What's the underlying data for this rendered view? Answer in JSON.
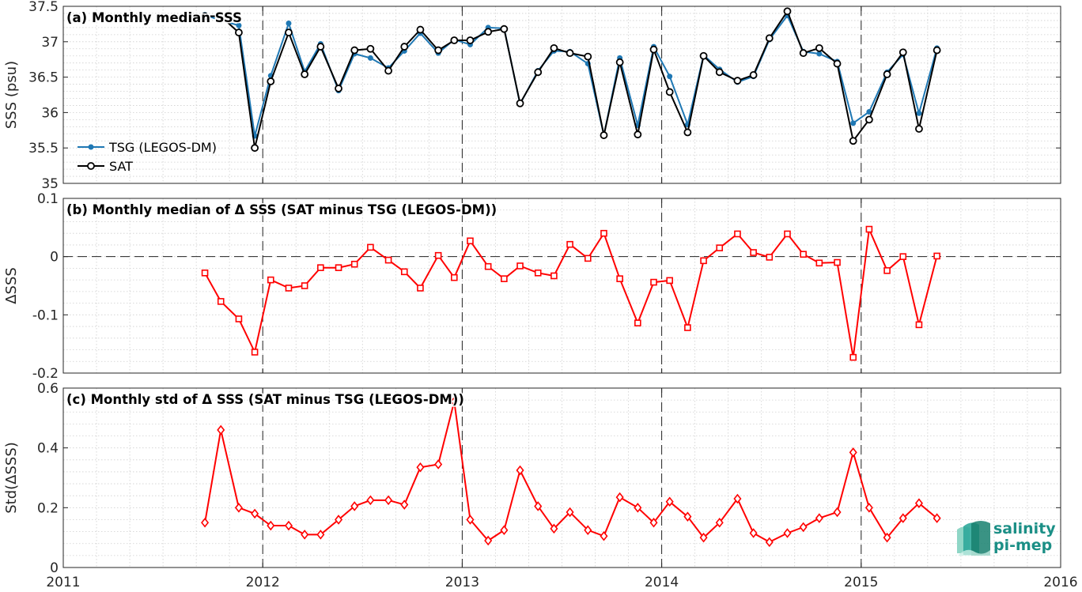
{
  "chart_data": [
    {
      "type": "line",
      "title": "(a) Monthly median SSS",
      "ylabel": "SSS (psu)",
      "ylim": [
        35,
        37.5
      ],
      "yticks": [
        "35",
        "35.5",
        "36",
        "36.5",
        "37",
        "37.5"
      ],
      "xlim": [
        2011,
        2016
      ],
      "x": [
        2011.71,
        2011.79,
        2011.88,
        2011.96,
        2012.04,
        2012.13,
        2012.21,
        2012.29,
        2012.38,
        2012.46,
        2012.54,
        2012.63,
        2012.71,
        2012.79,
        2012.88,
        2012.96,
        2013.04,
        2013.13,
        2013.21,
        2013.29,
        2013.38,
        2013.46,
        2013.54,
        2013.63,
        2013.71,
        2013.79,
        2013.88,
        2013.96,
        2014.04,
        2014.13,
        2014.21,
        2014.29,
        2014.38,
        2014.46,
        2014.54,
        2014.63,
        2014.71,
        2014.79,
        2014.88,
        2014.96,
        2015.04,
        2015.13,
        2015.21,
        2015.29,
        2015.38
      ],
      "series": [
        {
          "name": "TSG (LEGOS-DM)",
          "color": "#1f78b4",
          "marker": "dot",
          "values": [
            37.38,
            37.3,
            37.23,
            35.67,
            36.52,
            37.26,
            36.58,
            36.97,
            36.31,
            36.83,
            36.77,
            36.63,
            36.87,
            37.12,
            36.84,
            37.03,
            36.96,
            37.2,
            37.19,
            36.12,
            36.59,
            36.87,
            36.86,
            36.69,
            35.68,
            36.77,
            35.82,
            36.93,
            36.51,
            35.83,
            36.81,
            36.61,
            36.43,
            36.51,
            37.03,
            37.37,
            36.86,
            36.83,
            36.72,
            35.85,
            36.01,
            36.57,
            36.82,
            35.99,
            36.91
          ]
        },
        {
          "name": "SAT",
          "color": "#000000",
          "marker": "circle",
          "values": [
            37.36,
            37.36,
            37.13,
            35.5,
            36.44,
            37.13,
            36.54,
            36.93,
            36.34,
            36.88,
            36.9,
            36.59,
            36.93,
            37.17,
            36.88,
            37.02,
            37.02,
            37.14,
            37.18,
            36.13,
            36.57,
            36.91,
            36.84,
            36.79,
            35.68,
            36.71,
            35.69,
            36.89,
            36.29,
            35.72,
            36.8,
            36.57,
            36.45,
            36.53,
            37.05,
            37.43,
            36.84,
            36.91,
            36.69,
            35.6,
            35.9,
            36.54,
            36.85,
            35.77,
            36.88
          ]
        }
      ],
      "legend": [
        "TSG (LEGOS-DM)",
        "SAT"
      ],
      "legend_placement": "bottom-left",
      "grid": true
    },
    {
      "type": "line",
      "title": "(b) Monthly median of Δ SSS (SAT minus TSG (LEGOS-DM))",
      "ylabel": "ΔSSS",
      "ylim": [
        -0.2,
        0.1
      ],
      "yticks": [
        "-0.2",
        "-0.1",
        "0",
        "0.1"
      ],
      "xlim": [
        2011,
        2016
      ],
      "x": [
        2011.71,
        2011.79,
        2011.88,
        2011.96,
        2012.04,
        2012.13,
        2012.21,
        2012.29,
        2012.38,
        2012.46,
        2012.54,
        2012.63,
        2012.71,
        2012.79,
        2012.88,
        2012.96,
        2013.04,
        2013.13,
        2013.21,
        2013.29,
        2013.38,
        2013.46,
        2013.54,
        2013.63,
        2013.71,
        2013.79,
        2013.88,
        2013.96,
        2014.04,
        2014.13,
        2014.21,
        2014.29,
        2014.38,
        2014.46,
        2014.54,
        2014.63,
        2014.71,
        2014.79,
        2014.88,
        2014.96,
        2015.04,
        2015.13,
        2015.21,
        2015.29,
        2015.38
      ],
      "series": [
        {
          "color": "#ff0000",
          "marker": "square",
          "values": [
            -0.028,
            -0.077,
            -0.107,
            -0.164,
            -0.04,
            -0.054,
            -0.05,
            -0.019,
            -0.019,
            -0.013,
            0.016,
            -0.006,
            -0.026,
            -0.054,
            0.002,
            -0.036,
            0.027,
            -0.017,
            -0.038,
            -0.016,
            -0.028,
            -0.033,
            0.021,
            -0.003,
            0.04,
            -0.038,
            -0.114,
            -0.044,
            -0.041,
            -0.122,
            -0.007,
            0.015,
            0.039,
            0.007,
            -0.001,
            0.039,
            0.004,
            -0.011,
            -0.01,
            -0.173,
            0.047,
            -0.024,
            0.0,
            -0.117,
            0.001
          ]
        }
      ],
      "reference_line_y": 0,
      "grid": true
    },
    {
      "type": "line",
      "title": "(c) Monthly std of Δ SSS (SAT minus TSG (LEGOS-DM))",
      "ylabel": "Std(ΔSSS)",
      "ylim": [
        0,
        0.6
      ],
      "yticks": [
        "0",
        "0.2",
        "0.4",
        "0.6"
      ],
      "xlim": [
        2011,
        2016
      ],
      "xticks": [
        "2011",
        "2012",
        "2013",
        "2014",
        "2015",
        "2016"
      ],
      "x": [
        2011.71,
        2011.79,
        2011.88,
        2011.96,
        2012.04,
        2012.13,
        2012.21,
        2012.29,
        2012.38,
        2012.46,
        2012.54,
        2012.63,
        2012.71,
        2012.79,
        2012.88,
        2012.96,
        2013.04,
        2013.13,
        2013.21,
        2013.29,
        2013.38,
        2013.46,
        2013.54,
        2013.63,
        2013.71,
        2013.79,
        2013.88,
        2013.96,
        2014.04,
        2014.13,
        2014.21,
        2014.29,
        2014.38,
        2014.46,
        2014.54,
        2014.63,
        2014.71,
        2014.79,
        2014.88,
        2014.96,
        2015.04,
        2015.13,
        2015.21,
        2015.29,
        2015.38
      ],
      "series": [
        {
          "color": "#ff0000",
          "marker": "diamond",
          "values": [
            0.15,
            0.46,
            0.2,
            0.18,
            0.14,
            0.14,
            0.11,
            0.11,
            0.16,
            0.205,
            0.225,
            0.225,
            0.21,
            0.335,
            0.345,
            0.555,
            0.16,
            0.09,
            0.125,
            0.325,
            0.205,
            0.13,
            0.185,
            0.125,
            0.105,
            0.235,
            0.2,
            0.15,
            0.22,
            0.17,
            0.1,
            0.15,
            0.23,
            0.115,
            0.085,
            0.115,
            0.135,
            0.165,
            0.185,
            0.385,
            0.2,
            0.1,
            0.165,
            0.215,
            0.165
          ]
        }
      ],
      "grid": true
    }
  ],
  "logo": {
    "line1": "salinity",
    "line2": "pi-mep"
  }
}
